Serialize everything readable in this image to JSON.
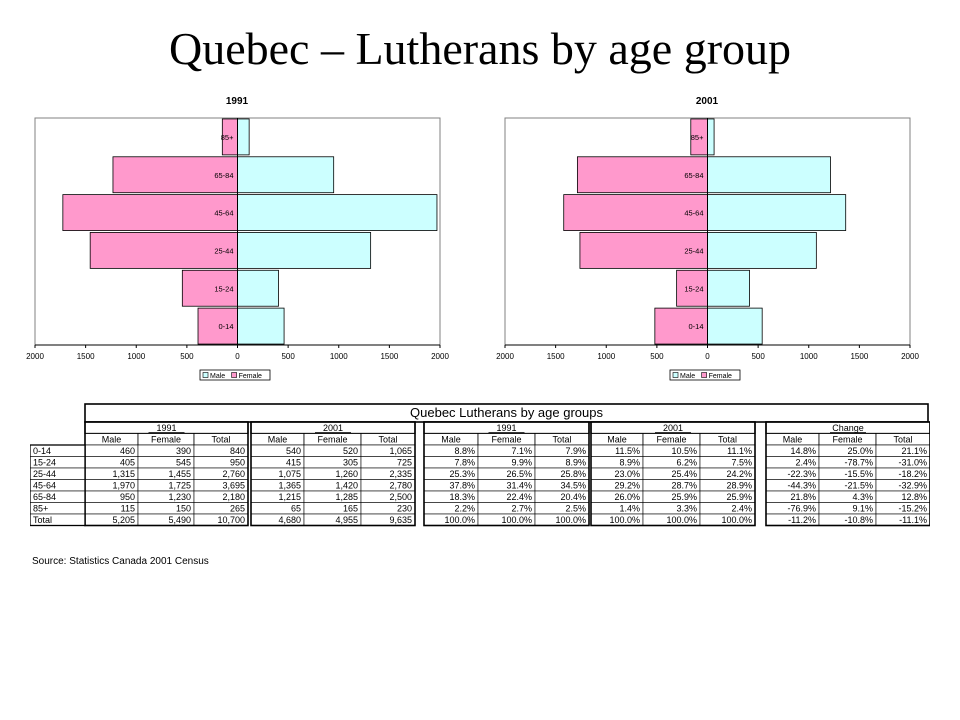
{
  "slide": {
    "title": "Quebec – Lutherans by age group"
  },
  "chart_data": [
    {
      "type": "bar",
      "title": "1991",
      "orientation": "horizontal-pyramid",
      "categories": [
        "0-14",
        "15-24",
        "25-44",
        "45-64",
        "65-84",
        "85+"
      ],
      "series": [
        {
          "name": "Male",
          "values": [
            460,
            405,
            1315,
            1970,
            950,
            115
          ],
          "color": "#ccffff",
          "side": "right"
        },
        {
          "name": "Female",
          "values": [
            390,
            545,
            1455,
            1725,
            1230,
            150
          ],
          "color": "#ff99cc",
          "side": "left"
        }
      ],
      "xticks": [
        "2000",
        "1500",
        "1000",
        "500",
        "0",
        "500",
        "1000",
        "1500",
        "2000"
      ],
      "xlim": [
        -2000,
        2000
      ],
      "legend": "bottom",
      "grid": false
    },
    {
      "type": "bar",
      "title": "2001",
      "orientation": "horizontal-pyramid",
      "categories": [
        "0-14",
        "15-24",
        "25-44",
        "45-64",
        "65-84",
        "85+"
      ],
      "series": [
        {
          "name": "Male",
          "values": [
            540,
            415,
            1075,
            1365,
            1215,
            65
          ],
          "color": "#ccffff",
          "side": "right"
        },
        {
          "name": "Female",
          "values": [
            520,
            305,
            1260,
            1420,
            1285,
            165
          ],
          "color": "#ff99cc",
          "side": "left"
        }
      ],
      "xticks": [
        "2000",
        "1500",
        "1000",
        "500",
        "0",
        "500",
        "1000",
        "1500",
        "2000"
      ],
      "xlim": [
        -2000,
        2000
      ],
      "legend": "bottom",
      "grid": false
    },
    {
      "type": "table",
      "title": "Quebec Lutherans by age groups",
      "groups": [
        "1991",
        "2001",
        "1991",
        "2001",
        "Change"
      ],
      "subheaders": [
        "Male",
        "Female",
        "Total"
      ],
      "rows": [
        {
          "label": "0-14",
          "c": [
            [
              "460",
              "390",
              "840"
            ],
            [
              "540",
              "520",
              "1,065"
            ],
            [
              "8.8%",
              "7.1%",
              "7.9%"
            ],
            [
              "11.5%",
              "10.5%",
              "11.1%"
            ],
            [
              "14.8%",
              "25.0%",
              "21.1%"
            ]
          ]
        },
        {
          "label": "15-24",
          "c": [
            [
              "405",
              "545",
              "950"
            ],
            [
              "415",
              "305",
              "725"
            ],
            [
              "7.8%",
              "9.9%",
              "8.9%"
            ],
            [
              "8.9%",
              "6.2%",
              "7.5%"
            ],
            [
              "2.4%",
              "-78.7%",
              "-31.0%"
            ]
          ]
        },
        {
          "label": "25-44",
          "c": [
            [
              "1,315",
              "1,455",
              "2,760"
            ],
            [
              "1,075",
              "1,260",
              "2,335"
            ],
            [
              "25.3%",
              "26.5%",
              "25.8%"
            ],
            [
              "23.0%",
              "25.4%",
              "24.2%"
            ],
            [
              "-22.3%",
              "-15.5%",
              "-18.2%"
            ]
          ]
        },
        {
          "label": "45-64",
          "c": [
            [
              "1,970",
              "1,725",
              "3,695"
            ],
            [
              "1,365",
              "1,420",
              "2,780"
            ],
            [
              "37.8%",
              "31.4%",
              "34.5%"
            ],
            [
              "29.2%",
              "28.7%",
              "28.9%"
            ],
            [
              "-44.3%",
              "-21.5%",
              "-32.9%"
            ]
          ]
        },
        {
          "label": "65-84",
          "c": [
            [
              "950",
              "1,230",
              "2,180"
            ],
            [
              "1,215",
              "1,285",
              "2,500"
            ],
            [
              "18.3%",
              "22.4%",
              "20.4%"
            ],
            [
              "26.0%",
              "25.9%",
              "25.9%"
            ],
            [
              "21.8%",
              "4.3%",
              "12.8%"
            ]
          ]
        },
        {
          "label": "85+",
          "c": [
            [
              "115",
              "150",
              "265"
            ],
            [
              "65",
              "165",
              "230"
            ],
            [
              "2.2%",
              "2.7%",
              "2.5%"
            ],
            [
              "1.4%",
              "3.3%",
              "2.4%"
            ],
            [
              "-76.9%",
              "9.1%",
              "-15.2%"
            ]
          ]
        },
        {
          "label": "Total",
          "c": [
            [
              "5,205",
              "5,490",
              "10,700"
            ],
            [
              "4,680",
              "4,955",
              "9,635"
            ],
            [
              "100.0%",
              "100.0%",
              "100.0%"
            ],
            [
              "100.0%",
              "100.0%",
              "100.0%"
            ],
            [
              "-11.2%",
              "-10.8%",
              "-11.1%"
            ]
          ]
        }
      ],
      "source": "Source: Statistics Canada 2001 Census"
    }
  ]
}
